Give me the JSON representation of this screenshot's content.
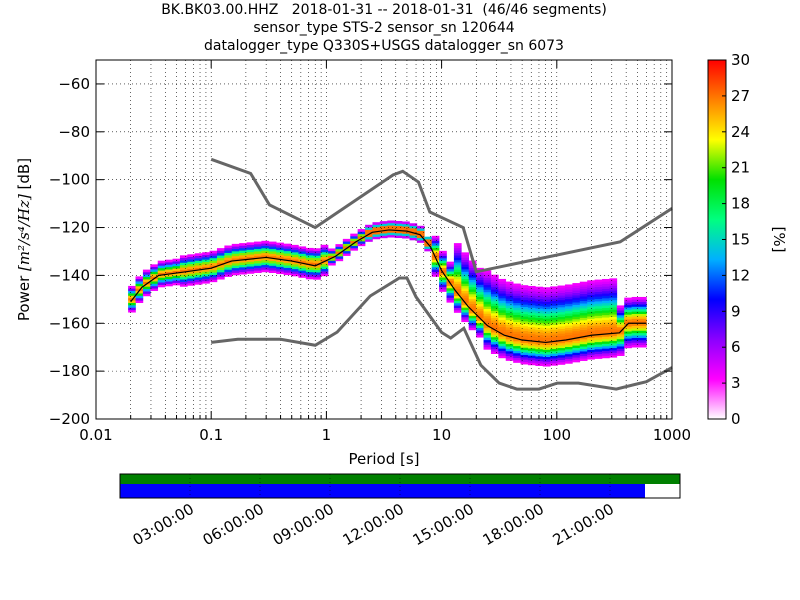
{
  "chart_data": {
    "type": "heatmap",
    "title_lines": [
      "BK.BK03.00.HHZ   2018-01-31 -- 2018-01-31  (46/46 segments)",
      "sensor_type STS-2 sensor_sn 120644",
      "datalogger_type Q330S+USGS datalogger_sn 6073"
    ],
    "xlabel": "Period [s]",
    "ylabel_prefix": "Power ",
    "ylabel_unit": "[m²/s⁴/Hz]",
    "ylabel_suffix": " [dB]",
    "x_scale": "log",
    "xlim": [
      0.01,
      1000
    ],
    "ylim": [
      -200,
      -50
    ],
    "x_ticks": [
      0.01,
      0.1,
      1,
      10,
      100,
      1000
    ],
    "x_tick_labels": [
      "0.01",
      "0.1",
      "1",
      "10",
      "100",
      "1000"
    ],
    "y_ticks": [
      -200,
      -180,
      -160,
      -140,
      -120,
      -100,
      -80,
      -60
    ],
    "y_tick_labels": [
      "−200",
      "−180",
      "−160",
      "−140",
      "−120",
      "−100",
      "−80",
      "−60"
    ],
    "grid": true,
    "colorbar": {
      "label": "[%]",
      "range": [
        0,
        30
      ],
      "ticks": [
        0,
        3,
        6,
        9,
        12,
        15,
        18,
        21,
        24,
        27,
        30
      ],
      "tick_labels": [
        "0",
        "3",
        "6",
        "9",
        "12",
        "15",
        "18",
        "21",
        "24",
        "27",
        "30"
      ],
      "colormap": "pqlx",
      "colors": [
        "#ffffff",
        "#ff00ff",
        "#8a00ff",
        "#0000ff",
        "#00b0ff",
        "#00ff80",
        "#00e000",
        "#ffff00",
        "#ff8000",
        "#ff0000"
      ]
    },
    "noise_model_high": {
      "name": "NHNM",
      "period": [
        0.1,
        0.22,
        0.32,
        0.8,
        3.8,
        4.6,
        6.3,
        7.9,
        15.4,
        20,
        354.8,
        1000
      ],
      "power": [
        -91.5,
        -97.4,
        -110.5,
        -120,
        -98,
        -96.5,
        -101,
        -113.5,
        -120,
        -138.5,
        -126,
        -112
      ]
    },
    "noise_model_low": {
      "name": "NLNM",
      "period": [
        0.1,
        0.17,
        0.4,
        0.8,
        1.24,
        2.4,
        4.3,
        5,
        6,
        10,
        12,
        15.6,
        21.9,
        31.6,
        45,
        70,
        101,
        154,
        328,
        600,
        1000
      ],
      "power": [
        -168,
        -166.7,
        -166.7,
        -169.2,
        -163.7,
        -148.6,
        -141.1,
        -141.1,
        -149,
        -163.8,
        -166.2,
        -162.1,
        -177.5,
        -185,
        -187.5,
        -187.5,
        -185,
        -185,
        -187.5,
        -184.4,
        -178.5
      ]
    },
    "mode_line": {
      "period": [
        0.02,
        0.025,
        0.035,
        0.06,
        0.1,
        0.15,
        0.3,
        0.5,
        0.8,
        1.2,
        1.8,
        2.5,
        3.5,
        5,
        6.5,
        8,
        10,
        13,
        17,
        25,
        35,
        50,
        80,
        120,
        200,
        350,
        420,
        600
      ],
      "power": [
        -151,
        -145,
        -140,
        -138.5,
        -137,
        -134,
        -132.5,
        -134,
        -136,
        -132,
        -126,
        -122,
        -121,
        -121.5,
        -123,
        -128,
        -138,
        -146,
        -153,
        -161,
        -165,
        -167,
        -168,
        -167,
        -165,
        -164,
        -160,
        -160
      ]
    },
    "segment_bar": {
      "top_color": "#008000",
      "bottom_color": "#0000ff",
      "tick_labels": [
        "03:00:00",
        "06:00:00",
        "09:00:00",
        "12:00:00",
        "15:00:00",
        "18:00:00",
        "21:00:00"
      ],
      "tick_hours": [
        3,
        6,
        9,
        12,
        15,
        18,
        21
      ],
      "coverage_end_hour": 22.5
    }
  }
}
